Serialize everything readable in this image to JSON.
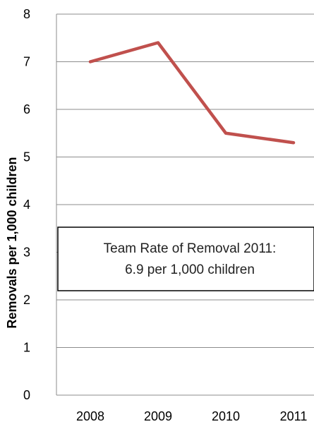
{
  "chart_data": {
    "type": "line",
    "categories": [
      "2008",
      "2009",
      "2010",
      "2011"
    ],
    "series": [
      {
        "values": [
          7.0,
          7.4,
          5.5,
          5.3
        ],
        "color": "#c0504d"
      }
    ],
    "ylabel": "Removals per 1,000 children",
    "ylim": [
      0,
      8
    ],
    "yticks": [
      0,
      1,
      2,
      3,
      4,
      5,
      6,
      7,
      8
    ],
    "grid": true,
    "annotation": {
      "lines": [
        "Team Rate of Removal 2011:",
        "6.9 per 1,000 children"
      ]
    }
  }
}
